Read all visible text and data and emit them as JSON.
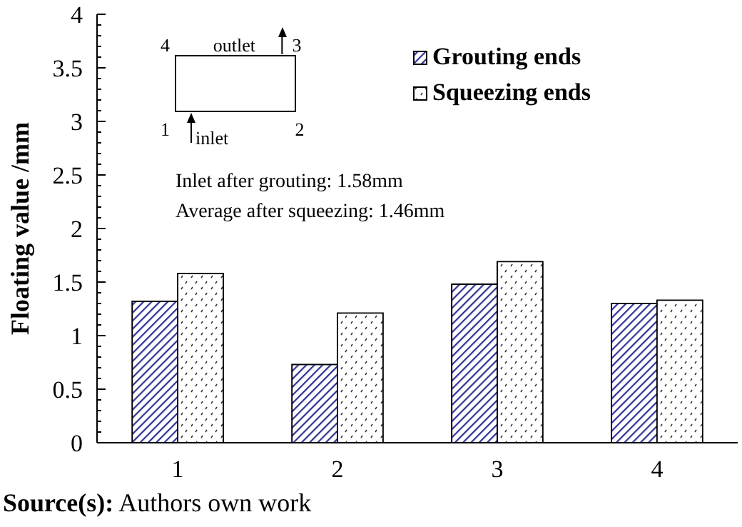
{
  "chart_data": {
    "type": "bar",
    "ylabel": "Floating value /mm",
    "categories": [
      "1",
      "2",
      "3",
      "4"
    ],
    "series": [
      {
        "name": "Grouting ends",
        "color": "#2e3192",
        "values": [
          1.32,
          0.73,
          1.48,
          1.3
        ]
      },
      {
        "name": "Squeezing ends",
        "color": "#ffffff",
        "values": [
          1.58,
          1.21,
          1.69,
          1.33
        ]
      }
    ],
    "ylim": [
      0,
      4
    ],
    "yticks": [
      0,
      0.5,
      1,
      1.5,
      2,
      2.5,
      3,
      3.5,
      4
    ],
    "grid": false,
    "legend": "top right",
    "annotations": [
      "4",
      "outlet",
      "3",
      "1",
      "inlet",
      "2",
      "Inlet after grouting: 1.58mm",
      "Average after squeezing: 1.46mm",
      "Source(s): Authors own work"
    ]
  }
}
